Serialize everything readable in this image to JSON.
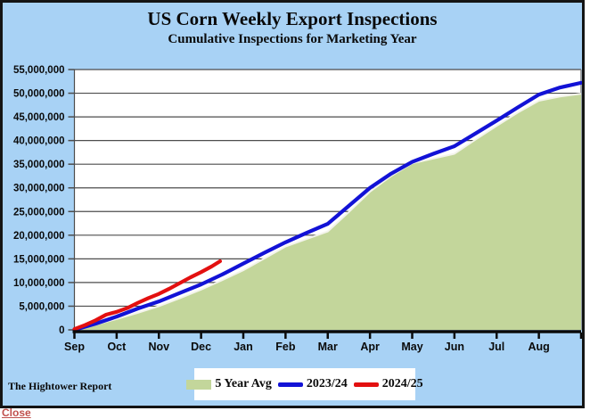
{
  "colors": {
    "panel_background": "#a8d2f5",
    "panel_border": "#141414",
    "plot_background": "#ffffff",
    "gridline": "#4d4d4d",
    "axis": "#0a0a0a",
    "text": "#0a0a0a",
    "area_fill": "#c3d69b",
    "area_top_edge": "#f4f4ec",
    "line_2023_24": "#1212d6",
    "line_2024_25": "#e31010",
    "legend_background": "#ffffff",
    "close_link": "#c0504d"
  },
  "footer": {
    "source": "The Hightower Report"
  },
  "window": {
    "close_label": "Close"
  },
  "chart_data": {
    "type": "line",
    "title": "US Corn Weekly Export Inspections",
    "subtitle": "Cumulative Inspections for Marketing Year",
    "x_categories": [
      "Sep",
      "Oct",
      "Nov",
      "Dec",
      "Jan",
      "Feb",
      "Mar",
      "Apr",
      "May",
      "Jun",
      "Jul",
      "Aug"
    ],
    "x_unit": "months_after_sep_start_of_marketing_year",
    "xlim": [
      0,
      12
    ],
    "ylim": [
      0,
      55000000
    ],
    "ytick_interval": 5000000,
    "ytick_labels": [
      "0",
      "5,000,000",
      "10,000,000",
      "15,000,000",
      "20,000,000",
      "25,000,000",
      "30,000,000",
      "35,000,000",
      "40,000,000",
      "45,000,000",
      "50,000,000",
      "55,000,000"
    ],
    "grid": true,
    "legend_position": "bottom-center",
    "series": [
      {
        "name": "5 Year Avg",
        "type": "area",
        "color": "#c3d69b",
        "points": [
          [
            0,
            0
          ],
          [
            0.5,
            1100000
          ],
          [
            1,
            2300000
          ],
          [
            1.5,
            3600000
          ],
          [
            2,
            5000000
          ],
          [
            2.5,
            6700000
          ],
          [
            3,
            8500000
          ],
          [
            3.5,
            10500000
          ],
          [
            4,
            12600000
          ],
          [
            4.5,
            15100000
          ],
          [
            5,
            17600000
          ],
          [
            5.5,
            19200000
          ],
          [
            6,
            20800000
          ],
          [
            6.5,
            24900000
          ],
          [
            7,
            29200000
          ],
          [
            7.5,
            32500000
          ],
          [
            8,
            35200000
          ],
          [
            8.5,
            36200000
          ],
          [
            9,
            37200000
          ],
          [
            9.5,
            40200000
          ],
          [
            10,
            43100000
          ],
          [
            10.5,
            45900000
          ],
          [
            11,
            48400000
          ],
          [
            11.5,
            49300000
          ],
          [
            12,
            49900000
          ]
        ]
      },
      {
        "name": "2023/24",
        "type": "line",
        "color": "#1212d6",
        "points": [
          [
            0,
            0
          ],
          [
            0.5,
            1300000
          ],
          [
            1,
            2800000
          ],
          [
            1.5,
            4500000
          ],
          [
            2,
            6000000
          ],
          [
            2.5,
            7800000
          ],
          [
            3,
            9600000
          ],
          [
            3.5,
            11700000
          ],
          [
            4,
            14000000
          ],
          [
            4.5,
            16300000
          ],
          [
            5,
            18500000
          ],
          [
            5.5,
            20500000
          ],
          [
            6,
            22400000
          ],
          [
            6.5,
            26200000
          ],
          [
            7,
            30000000
          ],
          [
            7.5,
            33000000
          ],
          [
            8,
            35500000
          ],
          [
            8.5,
            37200000
          ],
          [
            9,
            38800000
          ],
          [
            9.5,
            41500000
          ],
          [
            10,
            44200000
          ],
          [
            10.5,
            47000000
          ],
          [
            11,
            49700000
          ],
          [
            11.5,
            51200000
          ],
          [
            12,
            52200000
          ]
        ]
      },
      {
        "name": "2024/25",
        "type": "line",
        "color": "#e31010",
        "points": [
          [
            0,
            150000
          ],
          [
            0.25,
            1000000
          ],
          [
            0.5,
            2000000
          ],
          [
            0.75,
            3200000
          ],
          [
            1,
            3800000
          ],
          [
            1.25,
            4600000
          ],
          [
            1.5,
            5700000
          ],
          [
            1.75,
            6700000
          ],
          [
            2,
            7600000
          ],
          [
            2.25,
            8700000
          ],
          [
            2.5,
            9900000
          ],
          [
            2.75,
            11100000
          ],
          [
            3,
            12200000
          ],
          [
            3.25,
            13400000
          ],
          [
            3.45,
            14500000
          ]
        ]
      }
    ]
  }
}
